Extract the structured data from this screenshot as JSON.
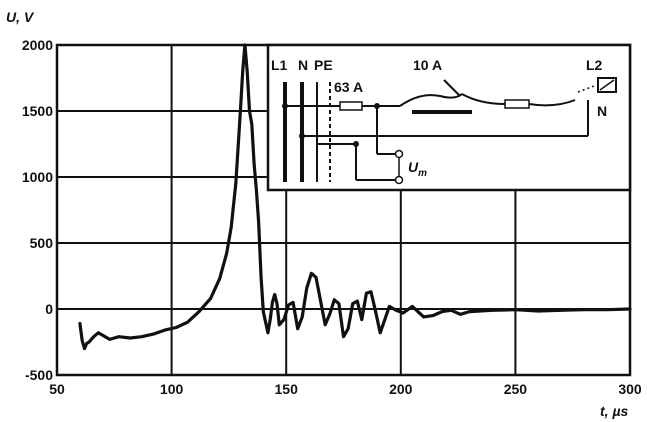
{
  "chart_data": {
    "type": "line",
    "ylabel": "U, V",
    "xlabel": "t, µs",
    "xlim": [
      50,
      300
    ],
    "ylim": [
      -500,
      2000
    ],
    "grid": true,
    "x_ticks": [
      "50",
      "100",
      "150",
      "200",
      "250",
      "300"
    ],
    "y_ticks": [
      "2000",
      "1500",
      "1000",
      "500",
      "0",
      "-500"
    ],
    "series": [
      {
        "x": [
          60,
          61,
          62,
          63,
          64,
          66,
          68,
          70,
          73,
          77,
          82,
          87,
          92,
          97,
          102,
          107,
          112,
          117,
          121,
          124,
          126,
          128,
          130,
          131,
          132,
          133,
          134,
          135,
          136,
          137,
          138,
          139,
          140,
          141,
          142,
          143,
          144,
          145,
          146,
          147,
          149,
          151,
          153,
          155,
          157,
          159,
          161,
          163,
          165,
          167,
          169,
          171,
          173,
          175,
          177,
          179,
          181,
          183,
          185,
          187,
          189,
          191,
          193,
          195,
          198,
          201,
          205,
          210,
          214,
          218,
          222,
          226,
          230,
          240,
          250,
          260,
          270,
          280,
          290,
          300
        ],
        "y": [
          -110,
          -240,
          -300,
          -260,
          -250,
          -210,
          -180,
          -200,
          -230,
          -210,
          -220,
          -210,
          -190,
          -160,
          -140,
          -100,
          -20,
          80,
          230,
          420,
          620,
          950,
          1500,
          1800,
          2000,
          1800,
          1500,
          1400,
          1100,
          900,
          650,
          250,
          -20,
          -100,
          -180,
          -80,
          50,
          110,
          40,
          -120,
          -80,
          30,
          50,
          -150,
          -60,
          160,
          270,
          240,
          60,
          -120,
          -40,
          70,
          40,
          -210,
          -150,
          40,
          60,
          -80,
          120,
          130,
          -20,
          -180,
          -80,
          20,
          -10,
          -30,
          20,
          -60,
          -50,
          -20,
          -10,
          -40,
          -20,
          -10,
          -5,
          -15,
          -10,
          -5,
          -5,
          0
        ]
      }
    ],
    "inset": {
      "labels": {
        "l1": "L1",
        "n": "N",
        "pe": "PE",
        "fuse_main": "63 A",
        "breaker": "10 A",
        "l2": "L2",
        "n2": "N",
        "um_main": "U",
        "um_sub": "m"
      }
    }
  }
}
